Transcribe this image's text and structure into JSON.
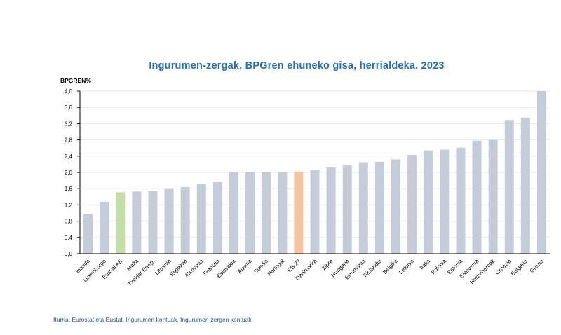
{
  "chart_data": {
    "type": "bar",
    "title": "Ingurumen-zergak, BPGren ehuneko gisa, herrialdeka. 2023",
    "ylabel": "BPGREN%",
    "xlabel": "",
    "ylim": [
      0,
      4.0
    ],
    "yticks": [
      "0,0",
      "0,4",
      "0,8",
      "1,2",
      "1,6",
      "2,0",
      "2,4",
      "2,8",
      "3,2",
      "3,6",
      "4,0"
    ],
    "grid": true,
    "categories": [
      "Irlanda",
      "Luxenburgo",
      "Euskal AE",
      "Malta",
      "Txekiar Errep.",
      "Lituania",
      "Espainia",
      "Alemania",
      "Frantzia",
      "Eslovakia",
      "Austria",
      "Suedia",
      "Portugal",
      "EB-27",
      "Danimarka",
      "Zipre",
      "Hungaria",
      "Errumania",
      "Finlandia",
      "Belgika",
      "Letonia",
      "Italia",
      "Polonia",
      "Estonia",
      "Eslovenia",
      "Herbehereak",
      "Croazia",
      "Bulgaria",
      "Grezia"
    ],
    "values": [
      0.97,
      1.28,
      1.51,
      1.53,
      1.55,
      1.61,
      1.64,
      1.71,
      1.77,
      2.0,
      2.01,
      2.01,
      2.01,
      2.02,
      2.05,
      2.12,
      2.17,
      2.25,
      2.26,
      2.32,
      2.43,
      2.54,
      2.56,
      2.61,
      2.78,
      2.8,
      3.29,
      3.35,
      4.0
    ],
    "colors": {
      "default": "#c5ccd9",
      "highlight_euskal": "#c3dfa4",
      "highlight_eu": "#f6c4a0",
      "title": "#1f6fb2",
      "grid": "#e8e8e8"
    },
    "highlights": {
      "Euskal AE": "highlight_euskal",
      "EB-27": "highlight_eu"
    }
  },
  "source_note": "Iturria: Eurostat eta Eustat. Ingurumen kontuak. Ingurumen-zergen kontuak"
}
